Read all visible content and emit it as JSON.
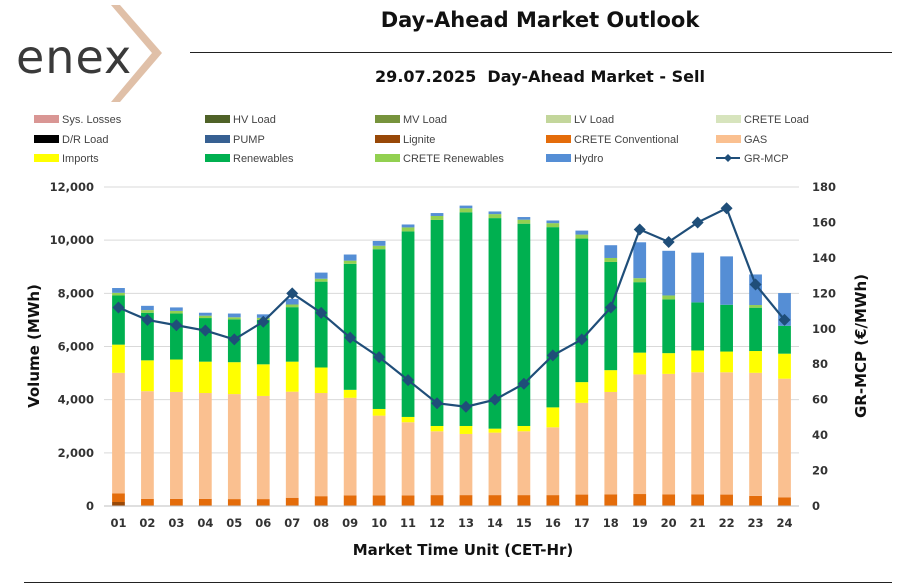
{
  "header": {
    "logo_text": "enex",
    "title": "Day-Ahead Market Outlook",
    "subtitle": "29.07.2025  Day-Ahead Market - Sell"
  },
  "colors": {
    "Sys. Losses": "#d99694",
    "HV Load": "#4f6228",
    "MV Load": "#77933c",
    "LV Load": "#c3d69b",
    "CRETE Load": "#d7e4bd",
    "D/R Load": "#000000",
    "PUMP": "#376092",
    "Lignite": "#984807",
    "CRETE Conventional": "#e46c0a",
    "GAS": "#fac090",
    "Imports": "#ffff00",
    "Renewables": "#00b050",
    "CRETE Renewables": "#92d050",
    "Hydro": "#558ed5",
    "GR-MCP": "#1f4e79"
  },
  "chart_data": {
    "type": "bar",
    "stacked": true,
    "title": "29.07.2025  Day-Ahead Market - Sell",
    "xlabel": "Market Time Unit (CET-Hr)",
    "ylabel": "Volume (MWh)",
    "y2label": "GR-MCP (€/MWh)",
    "ylim": [
      0,
      12000
    ],
    "y2lim": [
      0,
      180
    ],
    "yticks": [
      "0",
      "2,000",
      "4,000",
      "6,000",
      "8,000",
      "10,000",
      "12,000"
    ],
    "y2ticks": [
      "0",
      "20",
      "40",
      "60",
      "80",
      "100",
      "120",
      "140",
      "160",
      "180"
    ],
    "legend": [
      "Sys. Losses",
      "HV Load",
      "MV Load",
      "LV Load",
      "CRETE Load",
      "D/R Load",
      "PUMP",
      "Lignite",
      "CRETE Conventional",
      "GAS",
      "Imports",
      "Renewables",
      "CRETE Renewables",
      "Hydro",
      "GR-MCP"
    ],
    "categories": [
      "01",
      "02",
      "03",
      "04",
      "05",
      "06",
      "07",
      "08",
      "09",
      "10",
      "11",
      "12",
      "13",
      "14",
      "15",
      "16",
      "17",
      "18",
      "19",
      "20",
      "21",
      "22",
      "23",
      "24"
    ],
    "series": [
      {
        "name": "Lignite",
        "values": [
          150,
          0,
          0,
          0,
          0,
          0,
          0,
          0,
          0,
          0,
          0,
          0,
          0,
          0,
          0,
          0,
          0,
          0,
          0,
          0,
          0,
          0,
          0,
          0
        ]
      },
      {
        "name": "CRETE Conventional",
        "values": [
          320,
          270,
          270,
          270,
          260,
          260,
          310,
          370,
          400,
          400,
          400,
          410,
          410,
          410,
          410,
          410,
          430,
          440,
          450,
          440,
          440,
          430,
          380,
          320
        ]
      },
      {
        "name": "GAS",
        "values": [
          4540,
          4050,
          4020,
          3980,
          3950,
          3880,
          3990,
          3880,
          3670,
          3000,
          2750,
          2400,
          2300,
          2350,
          2400,
          2550,
          3450,
          3850,
          4500,
          4530,
          4590,
          4600,
          4630,
          4470
        ]
      },
      {
        "name": "Imports",
        "values": [
          1060,
          1160,
          1220,
          1180,
          1200,
          1190,
          1130,
          960,
          300,
          250,
          200,
          200,
          300,
          150,
          200,
          750,
          780,
          820,
          820,
          780,
          820,
          780,
          820,
          940
        ]
      },
      {
        "name": "Renewables",
        "values": [
          1850,
          1790,
          1730,
          1640,
          1610,
          1670,
          2050,
          3230,
          4740,
          6010,
          6980,
          7750,
          8040,
          7920,
          7610,
          6780,
          5400,
          4070,
          2650,
          2020,
          1810,
          1760,
          1630,
          1050
        ]
      },
      {
        "name": "CRETE Renewables",
        "values": [
          100,
          100,
          100,
          90,
          80,
          80,
          100,
          110,
          120,
          130,
          150,
          150,
          150,
          150,
          150,
          150,
          150,
          150,
          150,
          150,
          0,
          0,
          100,
          0
        ]
      },
      {
        "name": "Hydro",
        "values": [
          180,
          160,
          130,
          110,
          140,
          130,
          210,
          230,
          230,
          180,
          110,
          110,
          100,
          100,
          100,
          100,
          150,
          480,
          1350,
          1680,
          1870,
          1820,
          1150,
          1230
        ]
      }
    ],
    "line": {
      "name": "GR-MCP",
      "axis": "right",
      "values": [
        112,
        105,
        102,
        99,
        94,
        104,
        120,
        109,
        95,
        84,
        71,
        58,
        56,
        60,
        69,
        85,
        94,
        112,
        156,
        149,
        160,
        168,
        125,
        105
      ]
    }
  }
}
